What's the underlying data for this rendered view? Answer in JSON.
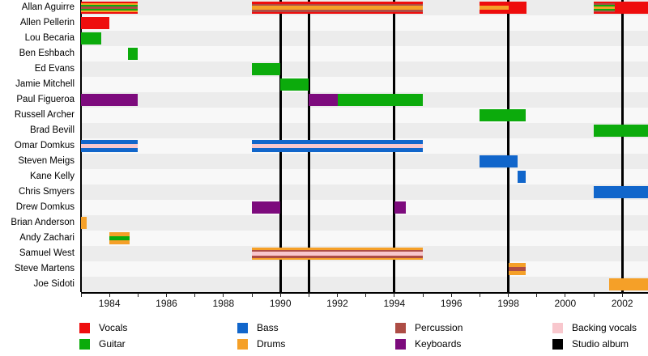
{
  "chart_data": {
    "type": "gantt",
    "description": "Band members timeline",
    "x_axis": {
      "start": 1983,
      "end": 2002.93,
      "labeled_ticks": [
        1984,
        1986,
        1988,
        1990,
        1992,
        1994,
        1996,
        1998,
        2000,
        2002
      ],
      "minor_tick_interval": 1,
      "grid": false
    },
    "legend_position": "bottom",
    "legend": [
      {
        "id": "vocals",
        "label": "Vocals",
        "color": "#ee0d0d"
      },
      {
        "id": "guitar",
        "label": "Guitar",
        "color": "#0cab0c"
      },
      {
        "id": "bass",
        "label": "Bass",
        "color": "#1166cb"
      },
      {
        "id": "drums",
        "label": "Drums",
        "color": "#f5a028"
      },
      {
        "id": "percussion",
        "label": "Percussion",
        "color": "#ad4d45"
      },
      {
        "id": "keyboards",
        "label": "Keyboards",
        "color": "#7d0b7d"
      },
      {
        "id": "backing_vocals",
        "label": "Backing vocals",
        "color": "#f8c7cd"
      },
      {
        "id": "studio_album",
        "label": "Studio album",
        "color": "#000000"
      }
    ],
    "studio_albums_years": [
      1990,
      1991,
      1994,
      1998,
      2002
    ],
    "members": [
      {
        "name": "Allan Aguirre",
        "bars": [
          {
            "start": 1983,
            "end": 1985,
            "roles": [
              "vocals",
              "drums",
              "guitar",
              "percussion"
            ]
          },
          {
            "start": 1989,
            "end": 1995,
            "roles": [
              "vocals",
              "percussion",
              "drums"
            ]
          },
          {
            "start": 1997,
            "end": 1998,
            "roles": [
              "vocals",
              "drums"
            ]
          },
          {
            "start": 1998,
            "end": 1998.65,
            "roles": [
              "vocals"
            ]
          },
          {
            "start": 2001,
            "end": 2001.75,
            "roles": [
              "vocals",
              "percussion",
              "guitar",
              "drums"
            ]
          },
          {
            "start": 2001.75,
            "end": 2002.93,
            "roles": [
              "vocals"
            ]
          }
        ]
      },
      {
        "name": "Allen Pellerin",
        "bars": [
          {
            "start": 1983,
            "end": 1984,
            "roles": [
              "vocals"
            ]
          }
        ]
      },
      {
        "name": "Lou Becaria",
        "bars": [
          {
            "start": 1983,
            "end": 1983.7,
            "roles": [
              "guitar"
            ]
          }
        ]
      },
      {
        "name": "Ben Eshbach",
        "bars": [
          {
            "start": 1984.65,
            "end": 1985,
            "roles": [
              "guitar"
            ]
          }
        ]
      },
      {
        "name": "Ed Evans",
        "bars": [
          {
            "start": 1989,
            "end": 1990,
            "roles": [
              "guitar"
            ]
          }
        ]
      },
      {
        "name": "Jamie Mitchell",
        "bars": [
          {
            "start": 1990,
            "end": 1991,
            "roles": [
              "guitar"
            ]
          }
        ]
      },
      {
        "name": "Paul Figueroa",
        "bars": [
          {
            "start": 1983,
            "end": 1985,
            "roles": [
              "keyboards"
            ]
          },
          {
            "start": 1991,
            "end": 1992,
            "roles": [
              "keyboards"
            ]
          },
          {
            "start": 1992,
            "end": 1995,
            "roles": [
              "guitar"
            ]
          }
        ]
      },
      {
        "name": "Russell Archer",
        "bars": [
          {
            "start": 1997,
            "end": 1998.6,
            "roles": [
              "guitar"
            ]
          }
        ]
      },
      {
        "name": "Brad Bevill",
        "bars": [
          {
            "start": 2001,
            "end": 2002.93,
            "roles": [
              "guitar"
            ]
          }
        ]
      },
      {
        "name": "Omar Domkus",
        "bars": [
          {
            "start": 1983,
            "end": 1985,
            "roles": [
              "bass",
              "backing_vocals"
            ]
          },
          {
            "start": 1989,
            "end": 1995,
            "roles": [
              "bass",
              "backing_vocals"
            ]
          }
        ]
      },
      {
        "name": "Steven Meigs",
        "bars": [
          {
            "start": 1997,
            "end": 1998.33,
            "roles": [
              "bass"
            ]
          }
        ]
      },
      {
        "name": "Kane Kelly",
        "bars": [
          {
            "start": 1998.33,
            "end": 1998.6,
            "roles": [
              "bass"
            ]
          }
        ]
      },
      {
        "name": "Chris Smyers",
        "bars": [
          {
            "start": 2001,
            "end": 2002.93,
            "roles": [
              "bass"
            ]
          }
        ]
      },
      {
        "name": "Drew Domkus",
        "bars": [
          {
            "start": 1989,
            "end": 1990,
            "roles": [
              "keyboards"
            ]
          },
          {
            "start": 1994,
            "end": 1994.4,
            "roles": [
              "keyboards"
            ]
          }
        ]
      },
      {
        "name": "Brian Anderson",
        "bars": [
          {
            "start": 1983,
            "end": 1983.2,
            "roles": [
              "drums"
            ]
          }
        ]
      },
      {
        "name": "Andy Zachari",
        "bars": [
          {
            "start": 1984,
            "end": 1984.7,
            "roles": [
              "drums",
              "guitar"
            ]
          }
        ]
      },
      {
        "name": "Samuel West",
        "bars": [
          {
            "start": 1989,
            "end": 1995,
            "roles": [
              "drums",
              "percussion",
              "backing_vocals"
            ]
          }
        ]
      },
      {
        "name": "Steve Martens",
        "bars": [
          {
            "start": 1998,
            "end": 1998.6,
            "roles": [
              "drums",
              "percussion"
            ]
          }
        ]
      },
      {
        "name": "Joe Sidoti",
        "bars": [
          {
            "start": 2001.55,
            "end": 2002.93,
            "roles": [
              "drums"
            ]
          }
        ]
      }
    ]
  }
}
